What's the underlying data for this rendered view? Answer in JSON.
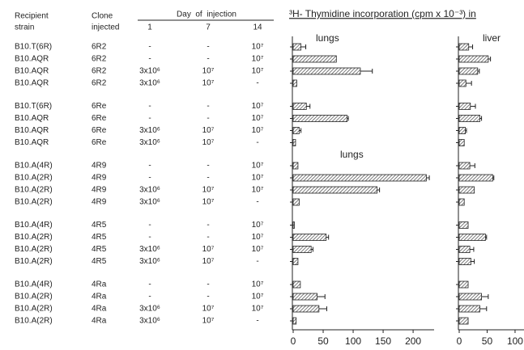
{
  "title": "³H- Thymidine incorporation (cpm x 10⁻³) in",
  "table": {
    "headers": {
      "strain": [
        "Recipient",
        "strain"
      ],
      "clone": [
        "Clone",
        "injected"
      ],
      "day": "Day  of  injection",
      "days": [
        "1",
        "7",
        "14"
      ]
    },
    "groups": [
      [
        [
          "B10.T(6R)",
          "6R2",
          "-",
          "-",
          "10⁷"
        ],
        [
          "B10.AQR",
          "6R2",
          "-",
          "-",
          "10⁷"
        ],
        [
          "B10.AQR",
          "6R2",
          "3x10⁶",
          "10⁷",
          "10⁷"
        ],
        [
          "B10.AQR",
          "6R2",
          "3x10⁶",
          "10⁷",
          "-"
        ]
      ],
      [
        [
          "B10.T(6R)",
          "6Re",
          "-",
          "-",
          "10⁷"
        ],
        [
          "B10.AQR",
          "6Re",
          "-",
          "-",
          "10⁷"
        ],
        [
          "B10.AQR",
          "6Re",
          "3x10⁶",
          "10⁷",
          "10⁷"
        ],
        [
          "B10.AQR",
          "6Re",
          "3x10⁶",
          "10⁷",
          "-"
        ]
      ],
      [
        [
          "B10.A(4R)",
          "4R9",
          "-",
          "-",
          "10⁷"
        ],
        [
          "B10.A(2R)",
          "4R9",
          "-",
          "-",
          "10⁷"
        ],
        [
          "B10.A(2R)",
          "4R9",
          "3x10⁶",
          "10⁷",
          "10⁷"
        ],
        [
          "B10.A(2R)",
          "4R9",
          "3x10⁶",
          "10⁷",
          "-"
        ]
      ],
      [
        [
          "B10.A(4R)",
          "4R5",
          "-",
          "-",
          "10⁷"
        ],
        [
          "B10.A(2R)",
          "4R5",
          "-",
          "-",
          "10⁷"
        ],
        [
          "B10.A(2R)",
          "4R5",
          "3x10⁶",
          "10⁷",
          "10⁷"
        ],
        [
          "B10.A(2R)",
          "4R5",
          "3x10⁶",
          "10⁷",
          "-"
        ]
      ],
      [
        [
          "B10.A(4R)",
          "4Ra",
          "-",
          "-",
          "10⁷"
        ],
        [
          "B10.A(2R)",
          "4Ra",
          "-",
          "-",
          "10⁷"
        ],
        [
          "B10.A(2R)",
          "4Ra",
          "3x10⁶",
          "10⁷",
          "10⁷"
        ],
        [
          "B10.A(2R)",
          "4Ra",
          "3x10⁶",
          "10⁷",
          "-"
        ]
      ]
    ]
  },
  "chart_data": [
    {
      "type": "bar",
      "orientation": "horizontal",
      "title": "lungs",
      "annotation": "lungs",
      "values": [
        13,
        72,
        112,
        6,
        22,
        90,
        10,
        4,
        8,
        222,
        140,
        10,
        2,
        55,
        30,
        8,
        12,
        40,
        43,
        5
      ],
      "errors": [
        8,
        null,
        20,
        null,
        6,
        2,
        3,
        null,
        null,
        5,
        4,
        null,
        null,
        4,
        3,
        null,
        null,
        13,
        13,
        null
      ],
      "xlim": [
        0,
        235
      ],
      "xticks": [
        0,
        50,
        100,
        150,
        200
      ]
    },
    {
      "type": "bar",
      "orientation": "horizontal",
      "title": "liver",
      "values": [
        17,
        52,
        33,
        12,
        20,
        37,
        11,
        9,
        19,
        60,
        27,
        9,
        16,
        47,
        19,
        21,
        16,
        40,
        37,
        16
      ],
      "errors": [
        7,
        4,
        3,
        10,
        9,
        3,
        2,
        null,
        9,
        2,
        null,
        null,
        null,
        2,
        7,
        6,
        null,
        12,
        12,
        null
      ],
      "xlim": [
        0,
        116
      ],
      "xticks": [
        0,
        50,
        100
      ]
    }
  ]
}
